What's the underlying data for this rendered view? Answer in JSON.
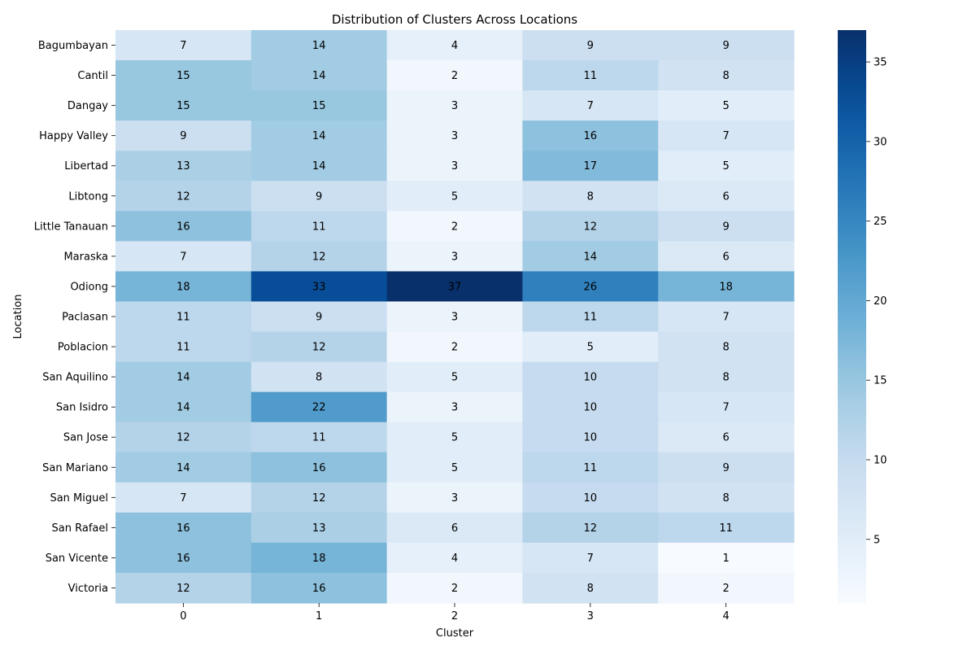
{
  "chart_data": {
    "type": "heatmap",
    "title": "Distribution of Clusters Across Locations",
    "xlabel": "Cluster",
    "ylabel": "Location",
    "x_categories": [
      "0",
      "1",
      "2",
      "3",
      "4"
    ],
    "y_categories": [
      "Bagumbayan",
      "Cantil",
      "Dangay",
      "Happy Valley",
      "Libertad",
      "Libtong",
      "Little Tanauan",
      "Maraska",
      "Odiong",
      "Paclasan",
      "Poblacion",
      "San Aquilino",
      "San Isidro",
      "San Jose",
      "San Mariano",
      "San Miguel",
      "San Rafael",
      "San Vicente",
      "Victoria"
    ],
    "values": [
      [
        7,
        14,
        4,
        9,
        9
      ],
      [
        15,
        14,
        2,
        11,
        8
      ],
      [
        15,
        15,
        3,
        7,
        5
      ],
      [
        9,
        14,
        3,
        16,
        7
      ],
      [
        13,
        14,
        3,
        17,
        5
      ],
      [
        12,
        9,
        5,
        8,
        6
      ],
      [
        16,
        11,
        2,
        12,
        9
      ],
      [
        7,
        12,
        3,
        14,
        6
      ],
      [
        18,
        33,
        37,
        26,
        18
      ],
      [
        11,
        9,
        3,
        11,
        7
      ],
      [
        11,
        12,
        2,
        5,
        8
      ],
      [
        14,
        8,
        5,
        10,
        8
      ],
      [
        14,
        22,
        3,
        10,
        7
      ],
      [
        12,
        11,
        5,
        10,
        6
      ],
      [
        14,
        16,
        5,
        11,
        9
      ],
      [
        7,
        12,
        3,
        10,
        8
      ],
      [
        16,
        13,
        6,
        12,
        11
      ],
      [
        16,
        18,
        4,
        7,
        1
      ],
      [
        12,
        16,
        2,
        8,
        2
      ]
    ],
    "colorbar": {
      "min": 1,
      "max": 37,
      "ticks": [
        5,
        10,
        15,
        20,
        25,
        30,
        35
      ],
      "colormap": "Blues"
    },
    "colors": {
      "low": "#f7fbff",
      "high": "#08306b"
    }
  }
}
